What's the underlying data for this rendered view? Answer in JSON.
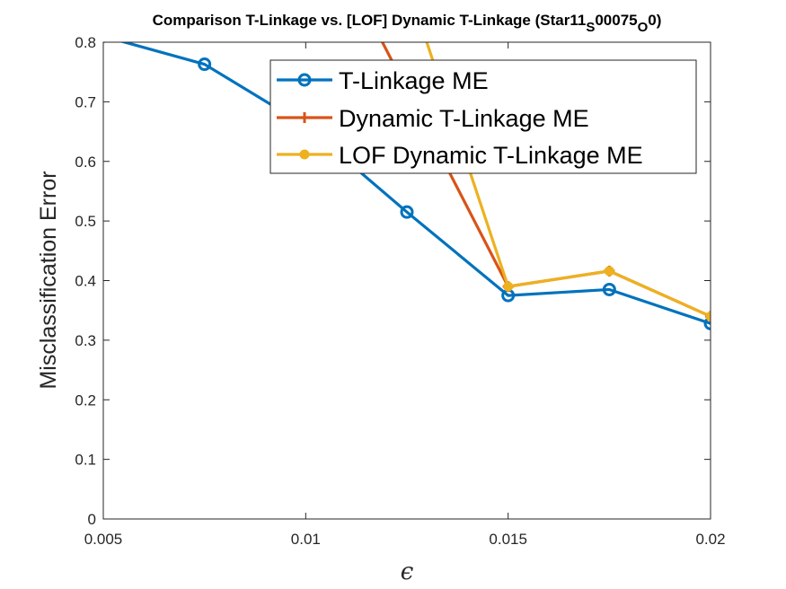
{
  "chart_data": {
    "type": "line",
    "title": "Comparison T-Linkage vs. [LOF] Dynamic T-Linkage (Star11",
    "title_sub1": "S",
    "title_mid": "00075",
    "title_sub2": "O",
    "title_end": "0)",
    "xlabel": "ϵ",
    "ylabel": "Misclassification Error",
    "xlim": [
      0.005,
      0.02
    ],
    "ylim": [
      0,
      0.8
    ],
    "xticks": [
      0.005,
      0.01,
      0.015,
      0.02
    ],
    "xtick_labels": [
      "0.005",
      "0.01",
      "0.015",
      "0.02"
    ],
    "yticks": [
      0,
      0.1,
      0.2,
      0.3,
      0.4,
      0.5,
      0.6,
      0.7,
      0.8
    ],
    "ytick_labels": [
      "0",
      "0.1",
      "0.2",
      "0.3",
      "0.4",
      "0.5",
      "0.6",
      "0.7",
      "0.8"
    ],
    "legend_position": "top-right",
    "series": [
      {
        "name": "T-Linkage ME",
        "color": "#0072BD",
        "marker": "circle",
        "x": [
          0.005,
          0.0075,
          0.01,
          0.0125,
          0.015,
          0.0175,
          0.02
        ],
        "values": [
          0.81,
          0.763,
          0.66,
          0.515,
          0.375,
          0.385,
          0.328
        ]
      },
      {
        "name": "Dynamic T-Linkage ME",
        "color": "#D95319",
        "marker": "plus",
        "x": [
          0.01,
          0.015,
          0.0175,
          0.02
        ],
        "values": [
          1.05,
          0.39,
          0.416,
          0.34
        ]
      },
      {
        "name": "LOF Dynamic T-Linkage ME",
        "color": "#EDB120",
        "marker": "dot",
        "x": [
          0.0125,
          0.015,
          0.0175,
          0.02
        ],
        "values": [
          0.9,
          0.39,
          0.416,
          0.34
        ]
      }
    ]
  }
}
